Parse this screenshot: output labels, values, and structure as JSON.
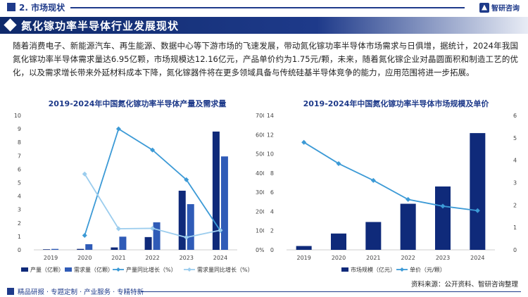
{
  "header": {
    "section_label": "2. 市场现状",
    "logo_text": "智研咨询"
  },
  "banner": {
    "title": "氮化镓功率半导体行业发展现状"
  },
  "description": "随着消费电子、新能源汽车、再生能源、数据中心等下游市场的飞速发展，带动氮化镓功率半导体市场需求与日俱增，据统计，2024年我国氮化镓功率半导体需求量达6.95亿颗，市场规模达12.16亿元，产品单价约为1.75元/颗，未来，随着氮化镓企业对晶圆面积和制造工艺的优化，以及需求增长带来外延材料成本下降，氮化镓器件将在更多领域具备与传统硅基半导体竞争的能力，应用范围将进一步拓展。",
  "footer": {
    "source": "资料来源：公开资料、智研咨询整理",
    "tagline": "精品研报 · 专题定制 · 产业服务 · 专精特新"
  },
  "colors": {
    "dark_navy": "#0f2a7a",
    "medium_blue": "#2f5bb7",
    "line_blue": "#3c9ad6",
    "line_light": "#9ccdee",
    "accent": "#1e3a8a"
  },
  "chart_data": [
    {
      "type": "bar",
      "title": "2019-2024年中国氮化镓功率半导体产量及需求量",
      "categories": [
        "2019",
        "2020",
        "2021",
        "2022",
        "2023",
        "2024"
      ],
      "left_axis": {
        "min": 0,
        "max": 10,
        "ticks": [
          "0",
          "1",
          "2",
          "3",
          "4",
          "5",
          "6",
          "7",
          "8",
          "9",
          "10"
        ]
      },
      "right_axis": {
        "min": 0,
        "max": 700,
        "ticks": [
          "0%",
          "100%",
          "200%",
          "300%",
          "400%",
          "500%",
          "600%",
          "700%"
        ]
      },
      "series": [
        {
          "name": "产量（亿颗）",
          "kind": "bar",
          "axis": "left",
          "values": [
            0.04,
            0.07,
            0.18,
            0.95,
            4.4,
            8.8
          ]
        },
        {
          "name": "需求量（亿颗）",
          "kind": "bar",
          "axis": "left",
          "values": [
            0.07,
            0.42,
            0.98,
            2.05,
            3.4,
            6.95
          ]
        },
        {
          "name": "产量同比增长（%）",
          "kind": "line",
          "axis": "right",
          "values": [
            null,
            75,
            630,
            520,
            365,
            100
          ]
        },
        {
          "name": "需求量同比增长（%）",
          "kind": "line",
          "axis": "right",
          "values": [
            null,
            395,
            110,
            112,
            65,
            102
          ]
        }
      ],
      "legend_placement": "bottom",
      "grid": false
    },
    {
      "type": "bar",
      "title": "2019-2024年中国氮化镓功率半导体市场规模及单价",
      "categories": [
        "2019",
        "2020",
        "2021",
        "2022",
        "2023",
        "2024"
      ],
      "left_axis": {
        "min": 0,
        "max": 14,
        "ticks": [
          "0",
          "2",
          "4",
          "6",
          "8",
          "10",
          "12",
          "14"
        ]
      },
      "right_axis": {
        "min": 0,
        "max": 6,
        "ticks": [
          "0",
          "1",
          "2",
          "3",
          "4",
          "5",
          "6"
        ]
      },
      "series": [
        {
          "name": "市场规模（亿元）",
          "kind": "bar",
          "axis": "left",
          "values": [
            0.4,
            1.7,
            2.9,
            4.8,
            6.6,
            12.16
          ]
        },
        {
          "name": "单价（元/颗）",
          "kind": "line",
          "axis": "right",
          "values": [
            4.8,
            3.85,
            3.1,
            2.25,
            1.95,
            1.75
          ]
        }
      ],
      "legend_placement": "bottom",
      "grid": false
    }
  ]
}
